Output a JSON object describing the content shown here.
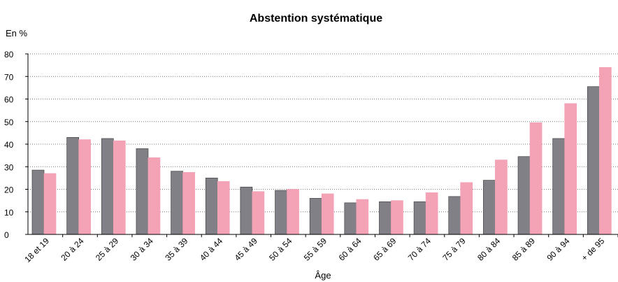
{
  "chart_data": {
    "type": "bar",
    "title": "Abstention systématique",
    "y_label": "En %",
    "x_label": "Âge",
    "categories": [
      "18 et 19",
      "20 à 24",
      "25 à 29",
      "30 à 34",
      "35 à 39",
      "40 à 44",
      "45 à 49",
      "50 à 54",
      "55 à 59",
      "60 à 64",
      "65 à 69",
      "70 à 74",
      "75 à 79",
      "80 à 84",
      "85 à 89",
      "90 à 94",
      "+ de 95"
    ],
    "series": [
      {
        "color": "#808086",
        "values": [
          28.5,
          43,
          42.5,
          38,
          28,
          25,
          21,
          19.5,
          16,
          14,
          14.5,
          14.5,
          16.8,
          24,
          34.5,
          42.5,
          65.5
        ]
      },
      {
        "color": "#f4a3b7",
        "values": [
          27,
          42,
          41.5,
          34,
          27.5,
          23.5,
          19,
          20,
          18,
          15.5,
          15,
          18.5,
          23,
          33,
          49.5,
          58,
          74
        ]
      }
    ],
    "ylim": [
      0,
      80
    ],
    "yticks": [
      0,
      10,
      20,
      30,
      40,
      50,
      60,
      70,
      80
    ],
    "grid": true
  }
}
